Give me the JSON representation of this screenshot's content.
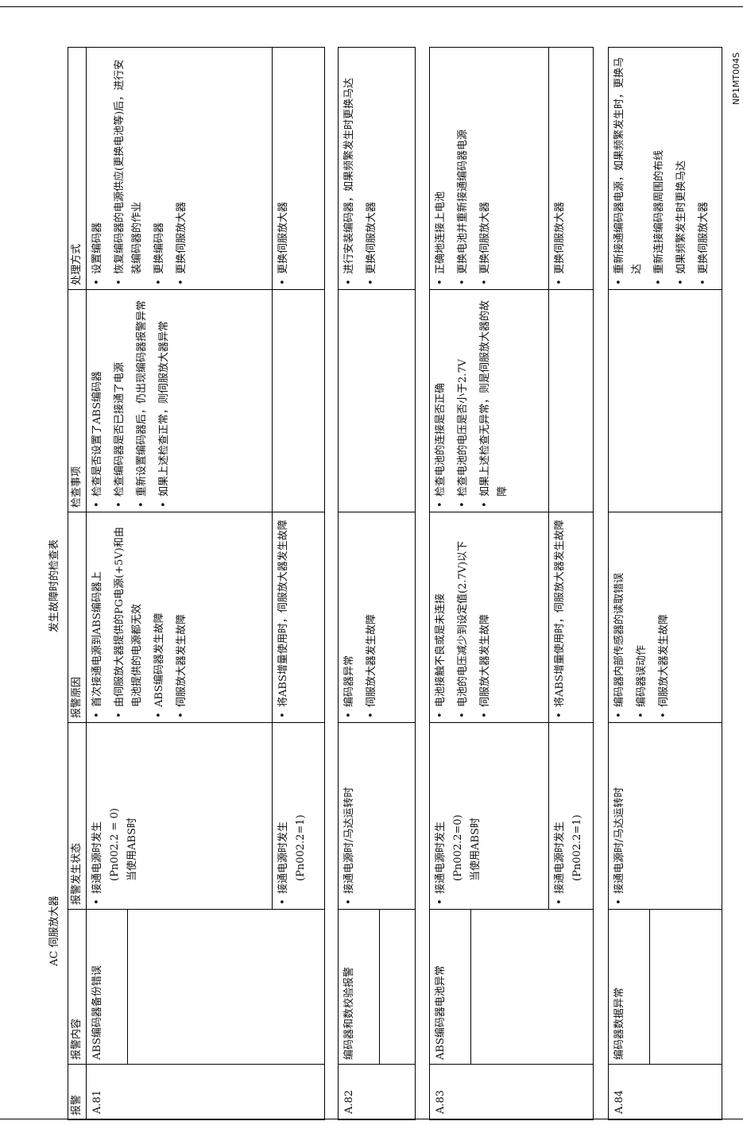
{
  "header": {
    "title": "AC 伺服放大器",
    "subtitle": "发生故障时的检查表",
    "doc_id": "NP1MT004S"
  },
  "table": {
    "columns": [
      "报警",
      "报警内容",
      "报警发生状态",
      "报警原因",
      "检查事项",
      "处理方式"
    ],
    "groups": [
      {
        "code": "A.81",
        "content": "ABS编码器备份错误",
        "rows": [
          {
            "state": [
              "接通电源时发生",
              "(Pn002.2 = 0)",
              "当使用ABS时"
            ],
            "causes": [
              "首次接通电源到ABS编码器上",
              "由伺服放大器提供的PG电源(+5V)和由电池提供的电源都无效",
              "ABS编码器发生故障",
              "伺服放大器发生故障"
            ],
            "checks": [
              "检查是否设置了ABS编码器",
              "检查编码器是否已接通了电源",
              "重新设置编码器后，仍出现编码器报警异常",
              "如果上述检查正常，则伺服放大器异常"
            ],
            "actions": [
              "设置编码器",
              "恢复编码器的电源供应(更换电池等)后，进行安装编码器的作业",
              "更换编码器",
              "更换伺服放大器"
            ]
          },
          {
            "state": [
              "接通电源时发生",
              "(Pn002.2=1)"
            ],
            "causes": [
              "将ABS增量使用时，伺服放大器发生故障"
            ],
            "checks": [],
            "actions": [
              "更换伺服放大器"
            ]
          }
        ]
      },
      {
        "code": "A.82",
        "content": "编码器和数校验报警",
        "rows": [
          {
            "state": [
              "接通电源时/马达运转时"
            ],
            "causes": [
              "编码器异常",
              "伺服放大器发生故障"
            ],
            "checks": [],
            "actions": [
              "进行安装编码器，如果频繁发生时更换马达",
              "更换伺服放大器"
            ]
          }
        ]
      },
      {
        "code": "A.83",
        "content": "ABS编码器电池异常",
        "rows": [
          {
            "state": [
              "接通电源时发生",
              "(Pn002.2=0)",
              "当使用ABS时"
            ],
            "causes": [
              "电池接触不良或是未连接",
              "电池的电压减少到设定值(2.7V)以下",
              "伺服放大器发生故障"
            ],
            "checks": [
              "检查电池的连接是否正确",
              "检查电池的电压是否小于2.7V",
              "如果上述检查无异常，则是伺服放大器的故障"
            ],
            "actions": [
              "正确地连接上电池",
              "更换电池并重新接通编码器电源",
              "更换伺服放大器"
            ]
          },
          {
            "state": [
              "接通电源时发生",
              "(Pn002.2=1)"
            ],
            "causes": [
              "将ABS增量使用时，伺服放大器发生故障"
            ],
            "checks": [],
            "actions": [
              "更换伺服放大器"
            ]
          }
        ]
      },
      {
        "code": "A.84",
        "content": "编码器数据异常",
        "rows": [
          {
            "state": [
              "接通电源时/马达运转时"
            ],
            "causes": [
              "编码器内部传感器的读取错误",
              "编码器误动作",
              "伺服放大器发生故障"
            ],
            "checks": [],
            "actions": [
              "重新接通编码器电源，如果频繁发生时，更换马达",
              "重新连接编码器周围的布线",
              "如果频繁发生时更换马达",
              "更换伺服放大器"
            ]
          }
        ]
      }
    ]
  }
}
